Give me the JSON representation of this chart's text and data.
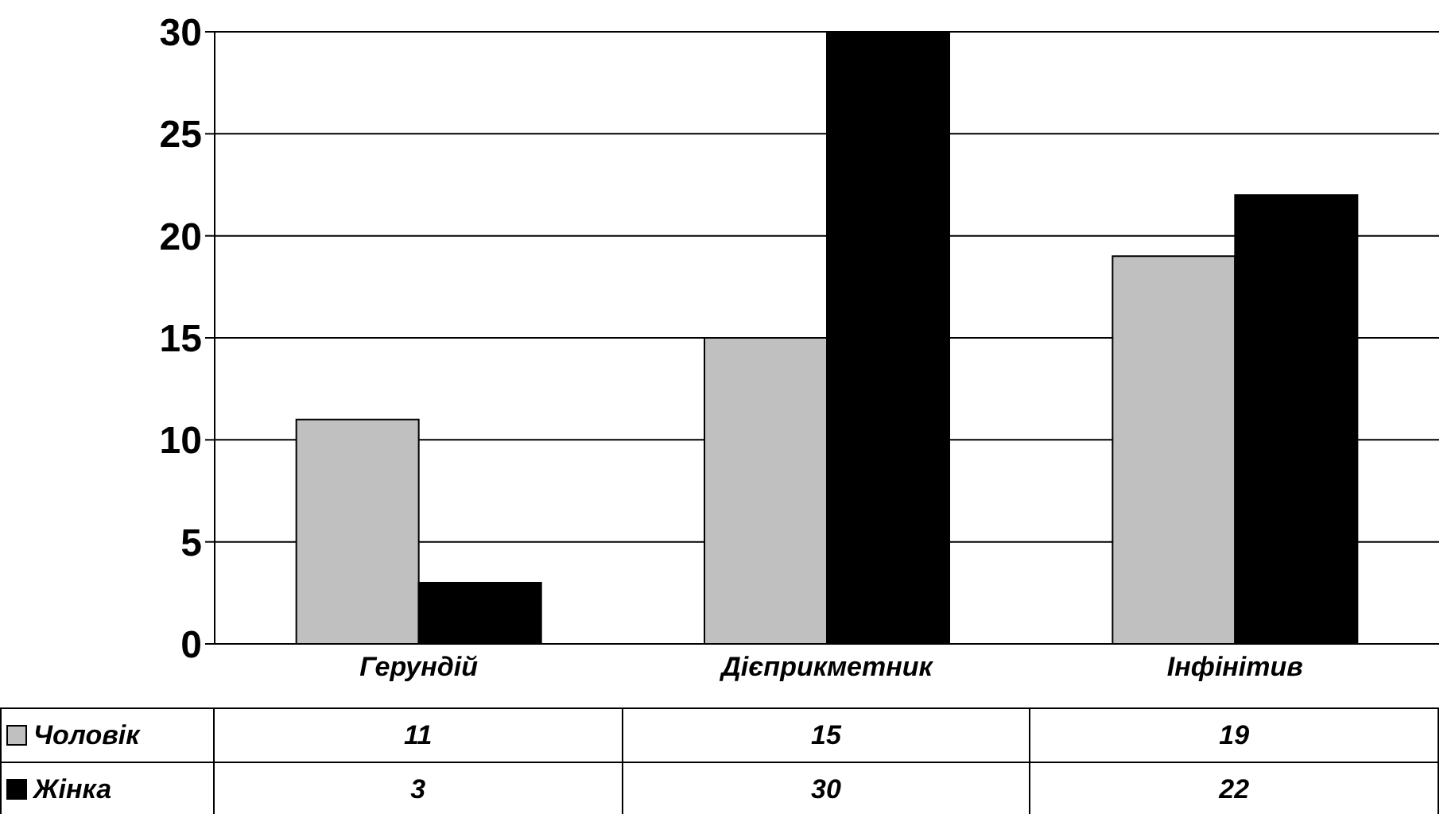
{
  "chart_data": {
    "type": "bar",
    "categories": [
      "Герундій",
      "Дієприкметник",
      "Інфінітив"
    ],
    "series": [
      {
        "name": "Чоловік",
        "color": "#c0c0c0",
        "values": [
          11,
          15,
          19
        ]
      },
      {
        "name": "Жінка",
        "color": "#000000",
        "values": [
          3,
          30,
          22
        ]
      }
    ],
    "ylim": [
      0,
      30
    ],
    "yticks": [
      0,
      5,
      10,
      15,
      20,
      25,
      30
    ],
    "grid": "y",
    "legend": "bottom left",
    "data_labels": true
  }
}
